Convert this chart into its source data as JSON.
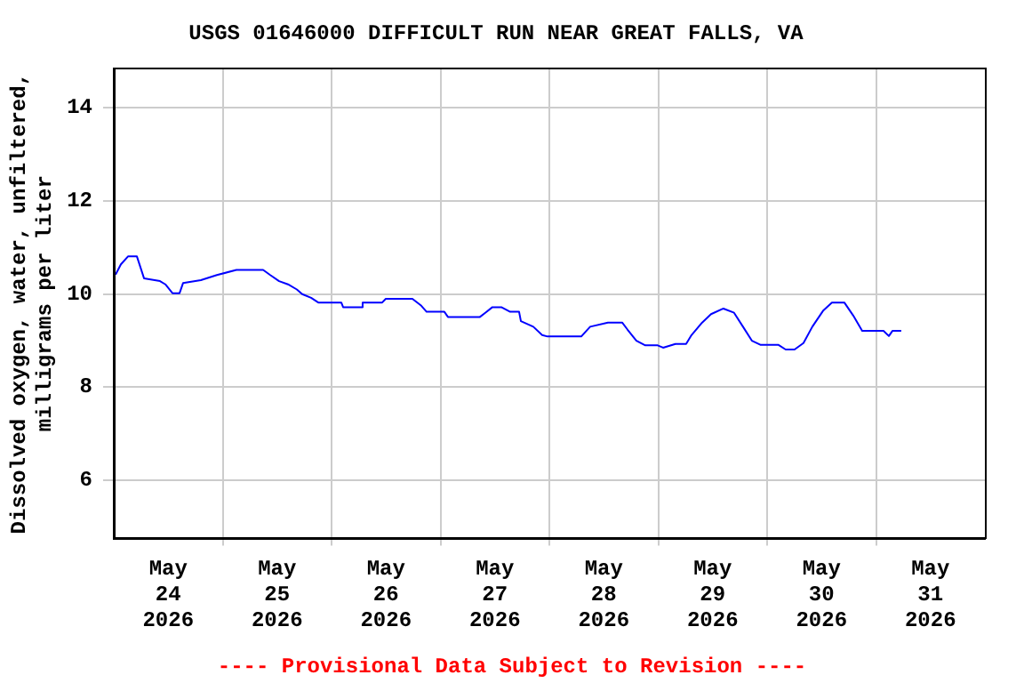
{
  "chart_data": {
    "type": "line",
    "title": "USGS 01646000 DIFFICULT RUN NEAR GREAT FALLS, VA",
    "ylabel": "Dissolved oxygen, water, unfiltered,\nmilligrams per liter",
    "annotations": [
      "---- Provisional Data Subject to Revision ----"
    ],
    "x": [
      "2026-05-24T00:24",
      "2026-05-24T01:34",
      "2026-05-24T03:08",
      "2026-05-24T05:06",
      "2026-05-24T06:40",
      "2026-05-24T10:11",
      "2026-05-24T11:22",
      "2026-05-24T12:56",
      "2026-05-24T14:30",
      "2026-05-24T15:17",
      "2026-05-24T19:12",
      "2026-05-24T22:44",
      "2026-05-25T03:02",
      "2026-05-25T08:55",
      "2026-05-25T10:29",
      "2026-05-25T12:26",
      "2026-05-25T14:24",
      "2026-05-25T16:21",
      "2026-05-25T17:32",
      "2026-05-25T19:30",
      "2026-05-25T21:04",
      "2026-05-26T02:09",
      "2026-05-26T02:33",
      "2026-05-26T06:28",
      "2026-05-26T06:51",
      "2026-05-26T11:10",
      "2026-05-26T11:57",
      "2026-05-26T17:49",
      "2026-05-26T19:47",
      "2026-05-26T20:57",
      "2026-05-27T00:52",
      "2026-05-27T01:39",
      "2026-05-27T08:42",
      "2026-05-27T09:53",
      "2026-05-27T11:27",
      "2026-05-27T13:25",
      "2026-05-27T15:22",
      "2026-05-27T17:20",
      "2026-05-27T17:44",
      "2026-05-27T20:28",
      "2026-05-27T22:25",
      "2026-05-27T23:36",
      "2026-05-28T07:02",
      "2026-05-28T09:00",
      "2026-05-28T12:55",
      "2026-05-28T16:03",
      "2026-05-28T17:13",
      "2026-05-28T19:11",
      "2026-05-28T21:09",
      "2026-05-28T23:53",
      "2026-05-29T01:04",
      "2026-05-29T03:48",
      "2026-05-29T06:09",
      "2026-05-29T07:20",
      "2026-05-29T09:41",
      "2026-05-29T11:38",
      "2026-05-29T14:22",
      "2026-05-29T16:43",
      "2026-05-29T18:41",
      "2026-05-29T20:38",
      "2026-05-29T22:36",
      "2026-05-30T02:31",
      "2026-05-30T04:05",
      "2026-05-30T06:03",
      "2026-05-30T08:01",
      "2026-05-30T09:58",
      "2026-05-30T12:19",
      "2026-05-30T14:17",
      "2026-05-30T17:01",
      "2026-05-30T18:59",
      "2026-05-30T20:57",
      "2026-05-31T01:39",
      "2026-05-31T02:50",
      "2026-05-31T03:37",
      "2026-05-31T05:34"
    ],
    "series": [
      {
        "color": "#0000ff",
        "values": [
          10.42,
          10.64,
          10.81,
          10.81,
          10.34,
          10.28,
          10.21,
          10.02,
          10.02,
          10.24,
          10.3,
          10.41,
          10.52,
          10.52,
          10.41,
          10.28,
          10.21,
          10.1,
          10.0,
          9.92,
          9.82,
          9.82,
          9.72,
          9.72,
          9.82,
          9.82,
          9.9,
          9.9,
          9.75,
          9.62,
          9.62,
          9.51,
          9.51,
          9.6,
          9.72,
          9.72,
          9.62,
          9.62,
          9.42,
          9.3,
          9.12,
          9.09,
          9.09,
          9.3,
          9.39,
          9.39,
          9.24,
          9.0,
          8.9,
          8.9,
          8.85,
          8.93,
          8.93,
          9.12,
          9.39,
          9.57,
          9.69,
          9.6,
          9.3,
          9.0,
          8.91,
          8.91,
          8.81,
          8.81,
          8.95,
          9.3,
          9.64,
          9.82,
          9.82,
          9.54,
          9.21,
          9.21,
          9.1,
          9.21,
          9.21
        ]
      }
    ],
    "xlim": [
      "2026-05-24T00:00",
      "2026-06-01T00:00"
    ],
    "xticks": [
      {
        "value": "2026-05-24T12:00",
        "label": "May 24 2026"
      },
      {
        "value": "2026-05-25T00:00",
        "label": null
      },
      {
        "value": "2026-05-25T12:00",
        "label": "May 25 2026"
      },
      {
        "value": "2026-05-26T00:00",
        "label": null
      },
      {
        "value": "2026-05-26T12:00",
        "label": "May 26 2026"
      },
      {
        "value": "2026-05-27T00:00",
        "label": null
      },
      {
        "value": "2026-05-27T12:00",
        "label": "May 27 2026"
      },
      {
        "value": "2026-05-28T00:00",
        "label": null
      },
      {
        "value": "2026-05-28T12:00",
        "label": "May 28 2026"
      },
      {
        "value": "2026-05-29T00:00",
        "label": null
      },
      {
        "value": "2026-05-29T12:00",
        "label": "May 29 2026"
      },
      {
        "value": "2026-05-30T00:00",
        "label": null
      },
      {
        "value": "2026-05-30T12:00",
        "label": "May 30 2026"
      },
      {
        "value": "2026-05-31T00:00",
        "label": null
      },
      {
        "value": "2026-05-31T12:00",
        "label": "May 31 2026"
      }
    ],
    "ylim": [
      4.75,
      14.85
    ],
    "yticks": [
      6,
      8,
      10,
      12,
      14
    ],
    "grid": true,
    "legend": false,
    "marker": "none",
    "line_style": "solid"
  }
}
